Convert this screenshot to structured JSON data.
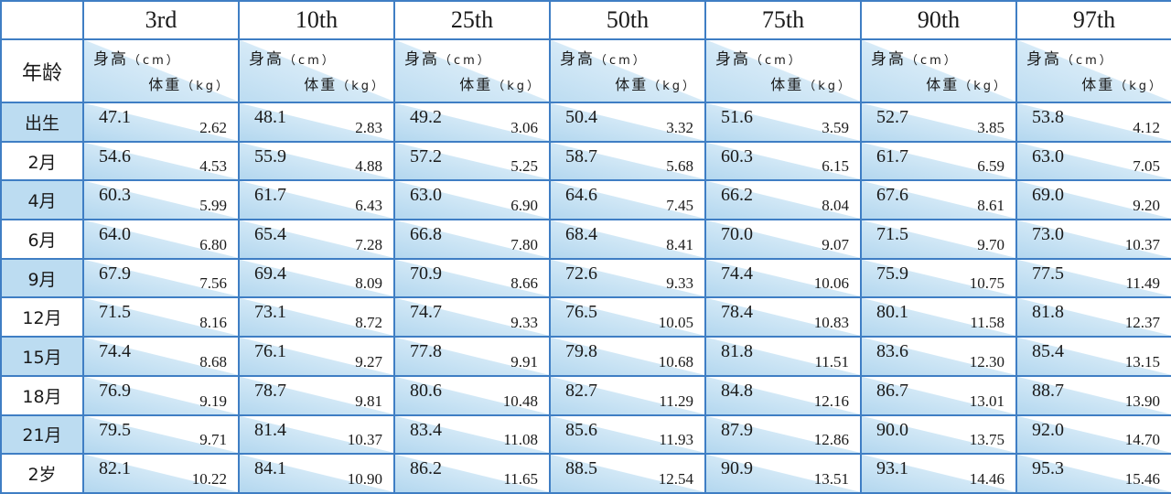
{
  "header": {
    "age_label": "年龄",
    "percentiles": [
      "3rd",
      "10th",
      "25th",
      "50th",
      "75th",
      "90th",
      "97th"
    ],
    "height_label": "身高",
    "height_unit": "（cm）",
    "weight_label": "体重",
    "weight_unit": "（kg）"
  },
  "rows": [
    {
      "age": "出生",
      "shade": true,
      "cells": [
        [
          "47.1",
          "2.62"
        ],
        [
          "48.1",
          "2.83"
        ],
        [
          "49.2",
          "3.06"
        ],
        [
          "50.4",
          "3.32"
        ],
        [
          "51.6",
          "3.59"
        ],
        [
          "52.7",
          "3.85"
        ],
        [
          "53.8",
          "4.12"
        ]
      ]
    },
    {
      "age": "2月",
      "shade": false,
      "cells": [
        [
          "54.6",
          "4.53"
        ],
        [
          "55.9",
          "4.88"
        ],
        [
          "57.2",
          "5.25"
        ],
        [
          "58.7",
          "5.68"
        ],
        [
          "60.3",
          "6.15"
        ],
        [
          "61.7",
          "6.59"
        ],
        [
          "63.0",
          "7.05"
        ]
      ]
    },
    {
      "age": "4月",
      "shade": true,
      "cells": [
        [
          "60.3",
          "5.99"
        ],
        [
          "61.7",
          "6.43"
        ],
        [
          "63.0",
          "6.90"
        ],
        [
          "64.6",
          "7.45"
        ],
        [
          "66.2",
          "8.04"
        ],
        [
          "67.6",
          "8.61"
        ],
        [
          "69.0",
          "9.20"
        ]
      ]
    },
    {
      "age": "6月",
      "shade": false,
      "cells": [
        [
          "64.0",
          "6.80"
        ],
        [
          "65.4",
          "7.28"
        ],
        [
          "66.8",
          "7.80"
        ],
        [
          "68.4",
          "8.41"
        ],
        [
          "70.0",
          "9.07"
        ],
        [
          "71.5",
          "9.70"
        ],
        [
          "73.0",
          "10.37"
        ]
      ]
    },
    {
      "age": "9月",
      "shade": true,
      "cells": [
        [
          "67.9",
          "7.56"
        ],
        [
          "69.4",
          "8.09"
        ],
        [
          "70.9",
          "8.66"
        ],
        [
          "72.6",
          "9.33"
        ],
        [
          "74.4",
          "10.06"
        ],
        [
          "75.9",
          "10.75"
        ],
        [
          "77.5",
          "11.49"
        ]
      ]
    },
    {
      "age": "12月",
      "shade": false,
      "cells": [
        [
          "71.5",
          "8.16"
        ],
        [
          "73.1",
          "8.72"
        ],
        [
          "74.7",
          "9.33"
        ],
        [
          "76.5",
          "10.05"
        ],
        [
          "78.4",
          "10.83"
        ],
        [
          "80.1",
          "11.58"
        ],
        [
          "81.8",
          "12.37"
        ]
      ]
    },
    {
      "age": "15月",
      "shade": true,
      "cells": [
        [
          "74.4",
          "8.68"
        ],
        [
          "76.1",
          "9.27"
        ],
        [
          "77.8",
          "9.91"
        ],
        [
          "79.8",
          "10.68"
        ],
        [
          "81.8",
          "11.51"
        ],
        [
          "83.6",
          "12.30"
        ],
        [
          "85.4",
          "13.15"
        ]
      ]
    },
    {
      "age": "18月",
      "shade": false,
      "cells": [
        [
          "76.9",
          "9.19"
        ],
        [
          "78.7",
          "9.81"
        ],
        [
          "80.6",
          "10.48"
        ],
        [
          "82.7",
          "11.29"
        ],
        [
          "84.8",
          "12.16"
        ],
        [
          "86.7",
          "13.01"
        ],
        [
          "88.7",
          "13.90"
        ]
      ]
    },
    {
      "age": "21月",
      "shade": true,
      "cells": [
        [
          "79.5",
          "9.71"
        ],
        [
          "81.4",
          "10.37"
        ],
        [
          "83.4",
          "11.08"
        ],
        [
          "85.6",
          "11.93"
        ],
        [
          "87.9",
          "12.86"
        ],
        [
          "90.0",
          "13.75"
        ],
        [
          "92.0",
          "14.70"
        ]
      ]
    },
    {
      "age": "2岁",
      "shade": false,
      "cells": [
        [
          "82.1",
          "10.22"
        ],
        [
          "84.1",
          "10.90"
        ],
        [
          "86.2",
          "11.65"
        ],
        [
          "88.5",
          "12.54"
        ],
        [
          "90.9",
          "13.51"
        ],
        [
          "93.1",
          "14.46"
        ],
        [
          "95.3",
          "15.46"
        ]
      ]
    }
  ]
}
